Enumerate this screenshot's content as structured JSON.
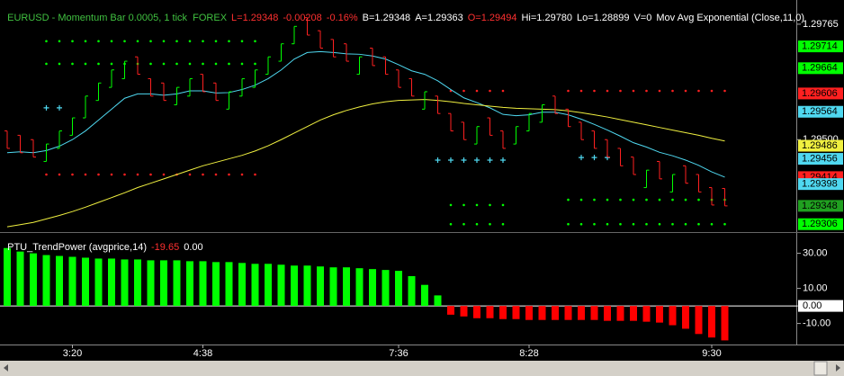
{
  "header": {
    "symbol": "EURUSD - Momentum Bar 0.0005, 1 tick  FOREX",
    "last": "L=1.29348",
    "change": "-0.00208",
    "change_pct": "-0.16%",
    "bid": "B=1.29348",
    "ask": "A=1.29363",
    "open": "O=1.29494",
    "high": "Hi=1.29780",
    "low": "Lo=1.28899",
    "volume": "V=0",
    "indicator": "Mov Avg Exponential (Close,11,0)"
  },
  "chart_data": [
    {
      "type": "ohlc",
      "categories": [
        null,
        null,
        null,
        null,
        null,
        "3:20",
        null,
        null,
        null,
        null,
        null,
        null,
        null,
        null,
        null,
        "4:38",
        null,
        null,
        null,
        null,
        null,
        null,
        null,
        null,
        null,
        null,
        null,
        null,
        null,
        null,
        "7:36",
        null,
        null,
        null,
        null,
        null,
        null,
        null,
        null,
        null,
        "8:28",
        null,
        null,
        null,
        null,
        null,
        null,
        null,
        null,
        null,
        null,
        null,
        null,
        null,
        "9:30",
        null
      ],
      "open": [
        1.2952,
        1.2951,
        1.295,
        1.2945,
        1.2948,
        1.2951,
        1.2955,
        1.2959,
        1.2962,
        1.2964,
        1.2969,
        1.2964,
        1.2963,
        1.2958,
        1.296,
        1.2965,
        1.2963,
        1.2957,
        1.296,
        1.2962,
        1.2965,
        1.2968,
        1.2972,
        1.2978,
        1.2975,
        1.2973,
        1.2972,
        1.2965,
        1.2971,
        1.2969,
        1.2966,
        1.2964,
        1.2957,
        1.296,
        1.2956,
        1.2954,
        1.2949,
        1.2955,
        1.2952,
        1.2949,
        1.2952,
        1.2954,
        1.296,
        1.2957,
        1.2954,
        1.2952,
        1.295,
        1.2948,
        1.2946,
        1.2939,
        1.2945,
        1.2938,
        1.2944,
        1.2942,
        1.2939,
        1.29388
      ],
      "values": [
        1.2948,
        1.2947,
        1.2946,
        1.2949,
        1.2952,
        1.2955,
        1.296,
        1.2963,
        1.2966,
        1.2968,
        1.2965,
        1.296,
        1.2959,
        1.2962,
        1.2964,
        1.2961,
        1.2959,
        1.2961,
        1.2964,
        1.2966,
        1.2969,
        1.2972,
        1.2976,
        1.2974,
        1.2971,
        1.2969,
        1.2968,
        1.2969,
        1.2967,
        1.2965,
        1.2962,
        1.296,
        1.2961,
        1.2956,
        1.2952,
        1.295,
        1.2953,
        1.2951,
        1.2948,
        1.2953,
        1.2956,
        1.2958,
        1.2956,
        1.2953,
        1.295,
        1.2948,
        1.2946,
        1.2944,
        1.2942,
        1.2943,
        1.2941,
        1.2942,
        1.294,
        1.2938,
        1.2935,
        1.29348
      ],
      "up_color": "#00ff00",
      "down_color": "#ff2020",
      "series": [
        {
          "color": "#4fd8f0",
          "values": [
            1.2947,
            1.29472,
            1.2947,
            1.29475,
            1.29485,
            1.295,
            1.2952,
            1.29545,
            1.2957,
            1.29595,
            1.29605,
            1.29605,
            1.29602,
            1.29605,
            1.29612,
            1.29612,
            1.29607,
            1.29608,
            1.29615,
            1.29625,
            1.2964,
            1.2966,
            1.29685,
            1.297,
            1.29702,
            1.297,
            1.29697,
            1.29696,
            1.29692,
            1.29685,
            1.29672,
            1.29658,
            1.2965,
            1.29635,
            1.29615,
            1.29596,
            1.29585,
            1.29573,
            1.29558,
            1.29555,
            1.29557,
            1.29563,
            1.29563,
            1.29557,
            1.29547,
            1.29535,
            1.29522,
            1.29508,
            1.29493,
            1.29483,
            1.29471,
            1.29463,
            1.29453,
            1.29441,
            1.29426,
            1.29414
          ]
        },
        {
          "color": "#f0f040",
          "values": [
            1.293,
            1.29305,
            1.2931,
            1.29318,
            1.29326,
            1.29335,
            1.29345,
            1.29356,
            1.29367,
            1.29378,
            1.2939,
            1.294,
            1.2941,
            1.2942,
            1.2943,
            1.2944,
            1.29448,
            1.29456,
            1.29464,
            1.29474,
            1.29486,
            1.295,
            1.29515,
            1.2953,
            1.29545,
            1.29557,
            1.29567,
            1.29575,
            1.29582,
            1.29587,
            1.2959,
            1.29591,
            1.29592,
            1.2959,
            1.29587,
            1.29583,
            1.2958,
            1.29577,
            1.29574,
            1.29572,
            1.29571,
            1.2957,
            1.29569,
            1.29566,
            1.29562,
            1.29557,
            1.29552,
            1.29546,
            1.2954,
            1.29534,
            1.29528,
            1.29522,
            1.29516,
            1.2951,
            1.29503,
            1.29497
          ]
        }
      ],
      "levels": [
        {
          "value": 1.29726,
          "color": "#00ff00",
          "marker": "dot",
          "start": 3,
          "end": 19
        },
        {
          "value": 1.29674,
          "color": "#00ff00",
          "marker": "dot",
          "start": 3,
          "end": 19
        },
        {
          "value": 1.2942,
          "color": "#ff2020",
          "marker": "dot",
          "start": 3,
          "end": 19
        },
        {
          "value": 1.29573,
          "color": "#4fd8f0",
          "marker": "plus",
          "start": 3,
          "end": 4
        },
        {
          "value": 1.29612,
          "color": "#ff2020",
          "marker": "dot",
          "start": 34,
          "end": 38
        },
        {
          "value": 1.2935,
          "color": "#00ff00",
          "marker": "dot",
          "start": 34,
          "end": 38
        },
        {
          "value": 1.29306,
          "color": "#00ff00",
          "marker": "dot",
          "start": 34,
          "end": 38
        },
        {
          "value": 1.29453,
          "color": "#4fd8f0",
          "marker": "plus",
          "start": 33,
          "end": 38
        },
        {
          "value": 1.29612,
          "color": "#ff2020",
          "marker": "dot",
          "start": 43,
          "end": 55
        },
        {
          "value": 1.29362,
          "color": "#00ff00",
          "marker": "dot",
          "start": 43,
          "end": 55
        },
        {
          "value": 1.29306,
          "color": "#00ff00",
          "marker": "dot",
          "start": 43,
          "end": 55
        },
        {
          "value": 1.29459,
          "color": "#4fd8f0",
          "marker": "plus",
          "start": 44,
          "end": 46
        }
      ],
      "ylim": [
        1.29292,
        1.29804
      ],
      "yticks": [
        1.29765,
        {
          "value": 1.295,
          "label": "1.29500"
        }
      ],
      "price_tags": [
        {
          "value": 1.29714,
          "color": "#00ff00"
        },
        {
          "value": 1.29664,
          "color": "#00ff00"
        },
        {
          "value": 1.29606,
          "color": "#ff2020"
        },
        {
          "value": 1.29564,
          "color": "#4fd8f0"
        },
        {
          "value": 1.29486,
          "color": "#f0f040"
        },
        {
          "value": 1.29456,
          "color": "#4fd8f0"
        },
        {
          "value": 1.29414,
          "color": "#ff2020"
        },
        {
          "value": 1.29398,
          "color": "#4fd8f0"
        },
        {
          "value": 1.29348,
          "color": "#20a020"
        },
        {
          "value": 1.29306,
          "color": "#00ff00"
        }
      ]
    },
    {
      "type": "bar",
      "title": "PTU_TrendPower (avgprice,14)",
      "last_value": "-19.65",
      "aux_value": "0.00",
      "values": [
        33,
        31,
        30,
        29,
        28.5,
        28,
        27.5,
        27,
        27,
        26.5,
        26.5,
        26,
        26,
        26,
        25.5,
        25.5,
        25,
        25,
        24.5,
        24,
        24,
        23.5,
        23,
        23,
        22.5,
        22,
        22,
        21.5,
        21,
        20.5,
        20,
        17,
        12,
        6,
        -5,
        -6,
        -7,
        -7,
        -7.5,
        -7.5,
        -8,
        -8,
        -8,
        -8,
        -8,
        -8,
        -8.5,
        -8.5,
        -8.5,
        -9,
        -9.5,
        -11,
        -13,
        -16,
        -18,
        -19.65
      ],
      "up_color": "#00ff00",
      "down_color": "#ff0000",
      "ylim": [
        -22,
        38
      ],
      "yticks": [
        {
          "value": 30,
          "label": "30.00"
        },
        {
          "value": 10,
          "label": "10.00"
        },
        {
          "value": 0,
          "label": "0.00"
        },
        {
          "value": -10,
          "label": "-10.00"
        }
      ]
    }
  ]
}
